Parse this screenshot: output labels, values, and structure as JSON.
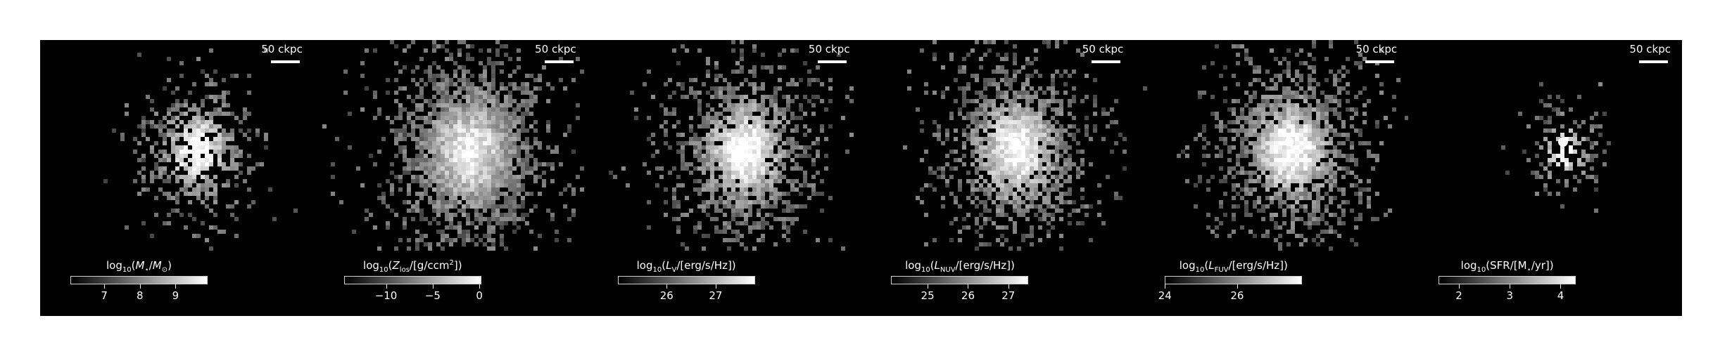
{
  "panels": [
    {
      "scale_label": "50 ckpc",
      "colorbar_label_parts": [
        "log",
        "10",
        "(",
        "M",
        "⋆",
        "/",
        "M",
        "⊙",
        ")"
      ],
      "colorbar_label_html": "log<sub>10</sub>(<i>M</i><sub>⋆</sub>/<i>M</i><sub>⊙</sub>)",
      "ticks": [
        {
          "label": "7",
          "value": 7
        },
        {
          "label": "8",
          "value": 8
        },
        {
          "label": "9",
          "value": 9
        }
      ],
      "colorbar_range": [
        6.05,
        9.9
      ],
      "blob": {
        "spread": 0.9,
        "density": 0.55,
        "core": 1.0
      }
    },
    {
      "scale_label": "50 ckpc",
      "colorbar_label_html": "log<sub>10</sub>(<i>Z</i><sub>los</sub>/[g/ccm<sup>2</sup>])",
      "ticks": [
        {
          "label": "−10",
          "value": -10
        },
        {
          "label": "−5",
          "value": -5
        },
        {
          "label": "0",
          "value": 0
        }
      ],
      "colorbar_range": [
        -14.5,
        0.2
      ],
      "blob": {
        "spread": 1.3,
        "density": 0.85,
        "core": 0.8
      }
    },
    {
      "scale_label": "50 ckpc",
      "colorbar_label_html": "log<sub>10</sub>(<i>L</i><sub>V</sub>/[erg/s/Hz])",
      "ticks": [
        {
          "label": "26",
          "value": 26
        },
        {
          "label": "27",
          "value": 27
        }
      ],
      "colorbar_range": [
        25.0,
        27.8
      ],
      "blob": {
        "spread": 1.2,
        "density": 0.7,
        "core": 0.9
      }
    },
    {
      "scale_label": "50 ckpc",
      "colorbar_label_html": "log<sub>10</sub>(<i>L</i><sub>NUV</sub>/[erg/s/Hz])",
      "ticks": [
        {
          "label": "25",
          "value": 25
        },
        {
          "label": "26",
          "value": 26
        },
        {
          "label": "27",
          "value": 27
        }
      ],
      "colorbar_range": [
        24.1,
        27.5
      ],
      "blob": {
        "spread": 1.2,
        "density": 0.7,
        "core": 0.9
      }
    },
    {
      "scale_label": "50 ckpc",
      "colorbar_label_html": "log<sub>10</sub>(<i>L</i><sub>FUV</sub>/[erg/s/Hz])",
      "ticks": [
        {
          "label": "24",
          "value": 24
        },
        {
          "label": "26",
          "value": 26
        }
      ],
      "colorbar_range": [
        24.0,
        27.8
      ],
      "blob": {
        "spread": 1.2,
        "density": 0.7,
        "core": 0.9
      }
    },
    {
      "scale_label": "50 ckpc",
      "colorbar_label_html": "log<sub>10</sub>(SFR/[M<sub>⋆</sub>/yr])",
      "ticks": [
        {
          "label": "2",
          "value": 2
        },
        {
          "label": "3",
          "value": 3
        },
        {
          "label": "4",
          "value": 4
        }
      ],
      "colorbar_range": [
        1.6,
        4.3
      ],
      "blob": {
        "spread": 0.6,
        "density": 0.35,
        "core": 1.0
      }
    }
  ],
  "colors": {
    "background": "#000000",
    "text": "#ffffff",
    "page": "#ffffff"
  }
}
